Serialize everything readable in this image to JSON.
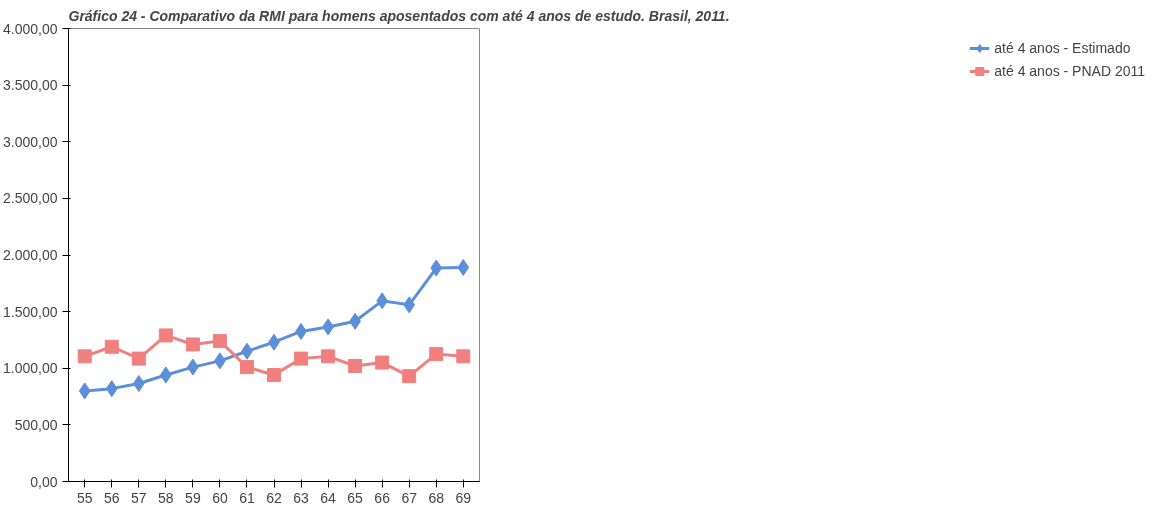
{
  "chart_data": {
    "type": "line",
    "title": "Gráfico 24 - Comparativo da RMI para homens aposentados com até 4 anos de estudo. Brasil, 2011.",
    "categories": [
      "55",
      "56",
      "57",
      "58",
      "59",
      "60",
      "61",
      "62",
      "63",
      "64",
      "65",
      "66",
      "67",
      "68",
      "69"
    ],
    "series": [
      {
        "name": "até 4 anos - Estimado",
        "color": "#5b8fd9",
        "marker": "diamond",
        "values": [
          800,
          820,
          865,
          940,
          1010,
          1065,
          1150,
          1230,
          1325,
          1365,
          1415,
          1595,
          1560,
          1885,
          1890
        ]
      },
      {
        "name": "até 4 anos - PNAD 2011",
        "color": "#f08080",
        "marker": "square",
        "values": [
          1105,
          1190,
          1085,
          1290,
          1210,
          1240,
          1010,
          940,
          1085,
          1105,
          1020,
          1050,
          930,
          1125,
          1105
        ]
      }
    ],
    "ylim": [
      0,
      4000
    ],
    "yticks": [
      {
        "value": 0,
        "label": "0,00"
      },
      {
        "value": 500,
        "label": "500,00"
      },
      {
        "value": 1000,
        "label": "1.000,00"
      },
      {
        "value": 1500,
        "label": "1.500,00"
      },
      {
        "value": 2000,
        "label": "2.000,00"
      },
      {
        "value": 2500,
        "label": "2.500,00"
      },
      {
        "value": 3000,
        "label": "3.000,00"
      },
      {
        "value": 3500,
        "label": "3.500,00"
      },
      {
        "value": 4000,
        "label": "4.000,00"
      }
    ],
    "legend": "right",
    "grid": false
  }
}
